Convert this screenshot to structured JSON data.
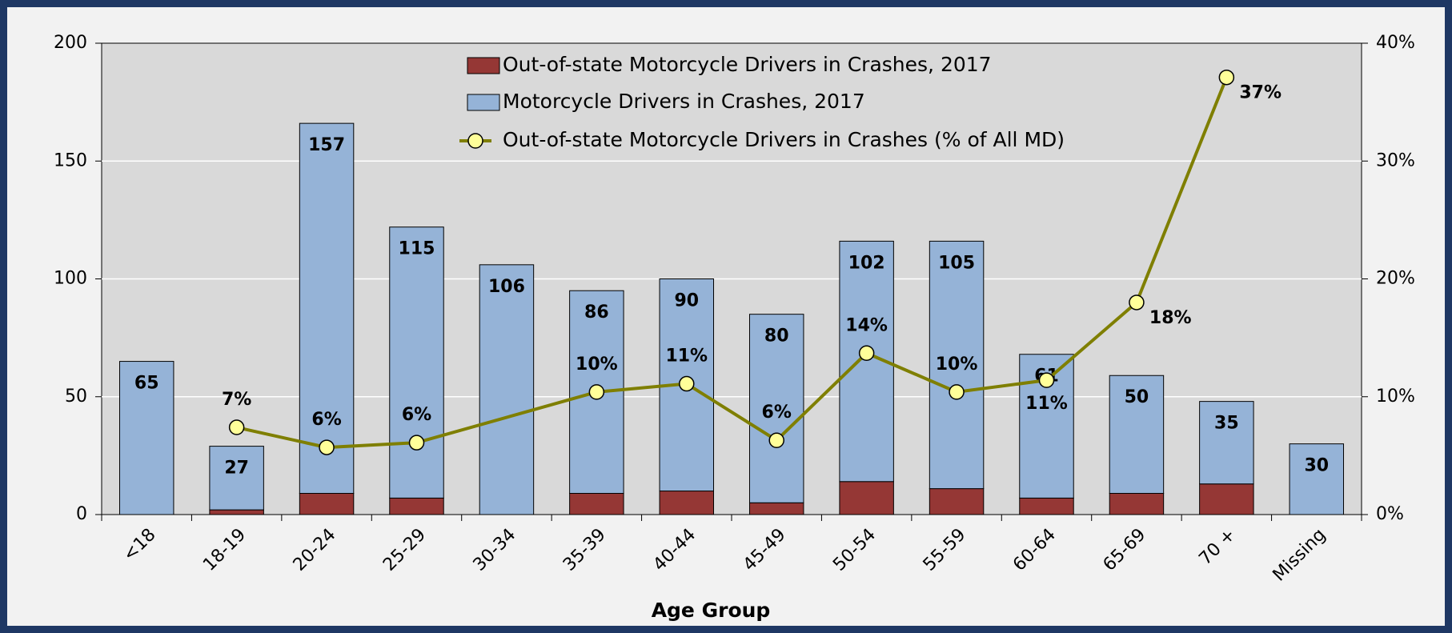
{
  "chart_data": {
    "type": "bar",
    "stacked": true,
    "x_label": "Age Group",
    "categories": [
      "<18",
      "18-19",
      "20-24",
      "25-29",
      "30-34",
      "35-39",
      "40-44",
      "45-49",
      "50-54",
      "55-59",
      "60-64",
      "65-69",
      "70 +",
      "Missing"
    ],
    "series": [
      {
        "name": "Out-of-state Motorcycle Drivers in Crashes, 2017",
        "color": "#953735",
        "values": [
          0,
          2,
          9,
          7,
          0,
          9,
          10,
          5,
          14,
          11,
          7,
          9,
          13,
          0
        ]
      },
      {
        "name": "Motorcycle Drivers in Crashes, 2017",
        "color": "#95b3d7",
        "values": [
          65,
          27,
          157,
          115,
          106,
          86,
          90,
          80,
          102,
          105,
          61,
          50,
          35,
          30
        ]
      },
      {
        "name": "Out-of-state Motorcycle Drivers in Crashes (% of All MD)",
        "type": "line",
        "axis": "y2",
        "color": "#7f7f00",
        "values": [
          null,
          7.4,
          5.7,
          6.1,
          null,
          10.4,
          11.1,
          6.3,
          13.7,
          10.4,
          11.4,
          18,
          37.1,
          null
        ],
        "value_labels": [
          null,
          "7%",
          "6%",
          "6%",
          null,
          "10%",
          "11%",
          "6%",
          "14%",
          "10%",
          "11%",
          "18%",
          "37%",
          null
        ]
      }
    ],
    "ylim": [
      0,
      200
    ],
    "yticks": [
      0,
      50,
      100,
      150,
      200
    ],
    "y2lim": [
      0,
      40
    ],
    "y2ticks": [
      {
        "value": 0,
        "label": "0%"
      },
      {
        "value": 10,
        "label": "10%"
      },
      {
        "value": 20,
        "label": "20%"
      },
      {
        "value": 30,
        "label": "30%"
      },
      {
        "value": 40,
        "label": "40%"
      }
    ],
    "grid": true,
    "legend": "top"
  }
}
